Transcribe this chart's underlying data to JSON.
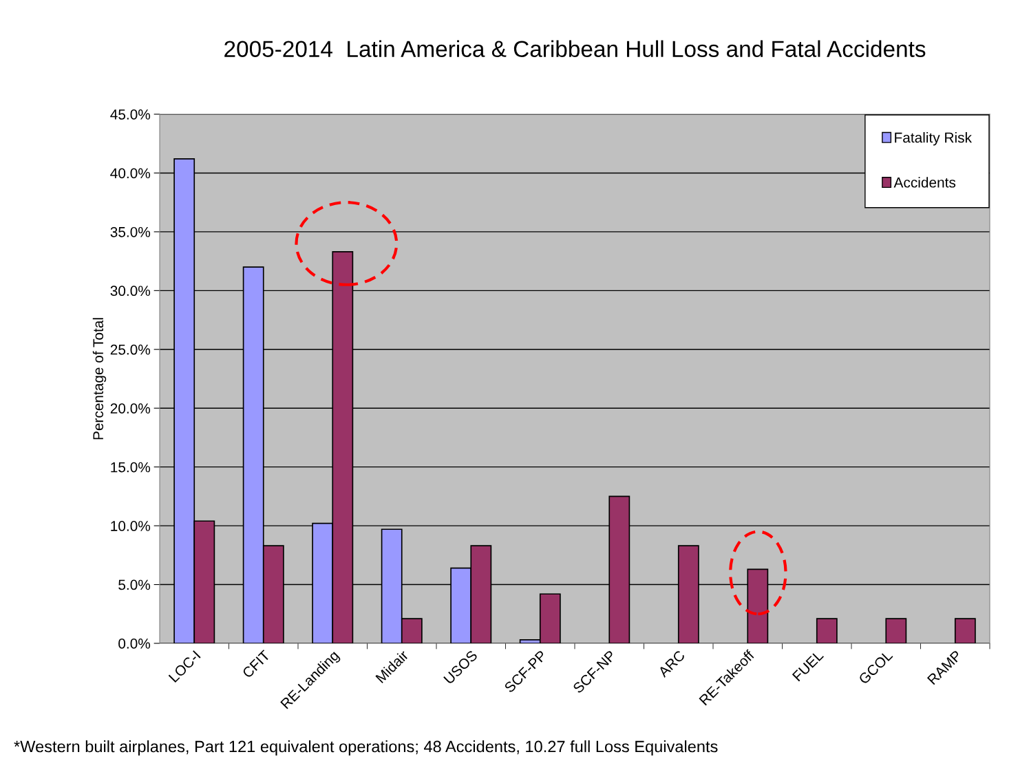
{
  "chart_data": {
    "type": "bar",
    "title": "2005-2014  Latin America & Caribbean Hull Loss and Fatal Accidents",
    "ylabel": "Percentage of Total",
    "categories": [
      "LOC-I",
      "CFIT",
      "RE-Landing",
      "Midair",
      "USOS",
      "SCF-PP",
      "SCF-NP",
      "ARC",
      "RE-Takeoff",
      "FUEL",
      "GCOL",
      "RAMP"
    ],
    "series": [
      {
        "name": "Fatality Risk",
        "color": "#9999ff",
        "values": [
          41.2,
          32.0,
          10.2,
          9.7,
          6.4,
          0.3,
          null,
          null,
          null,
          null,
          null,
          null
        ]
      },
      {
        "name": "Accidents",
        "color": "#993366",
        "values": [
          10.4,
          8.3,
          33.3,
          2.1,
          8.3,
          4.2,
          12.5,
          8.3,
          6.3,
          2.1,
          2.1,
          2.1
        ]
      }
    ],
    "ylim": [
      0,
      45
    ],
    "yticks": [
      {
        "value": 0,
        "label": "0.0%"
      },
      {
        "value": 5,
        "label": "5.0%"
      },
      {
        "value": 10,
        "label": "10.0%"
      },
      {
        "value": 15,
        "label": "15.0%"
      },
      {
        "value": 20,
        "label": "20.0%"
      },
      {
        "value": 25,
        "label": "25.0%"
      },
      {
        "value": 30,
        "label": "30.0%"
      },
      {
        "value": 35,
        "label": "35.0%"
      },
      {
        "value": 40,
        "label": "40.0%"
      },
      {
        "value": 45,
        "label": "45.0%"
      }
    ],
    "grid": "y",
    "legend": "top right",
    "annotations": [
      "*Western built airplanes, Part 121 equivalent operations; 48 Accidents, 10.27 full Loss Equivalents"
    ]
  }
}
